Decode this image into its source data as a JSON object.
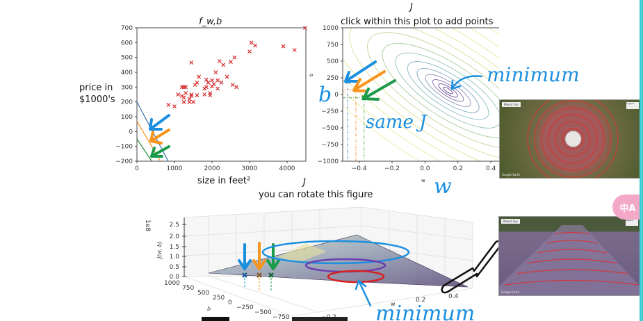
{
  "scatter": {
    "title": "f_w,b",
    "title_main": "f",
    "title_sub": "w, b",
    "ylabel_line1": "price in",
    "ylabel_line2": "$1000's",
    "xlabel": "size in feet²",
    "yticks": [
      "700",
      "600",
      "500",
      "400",
      "300",
      "200",
      "100",
      "0",
      "−100",
      "−200"
    ],
    "xticks": [
      "0",
      "1000",
      "2000",
      "3000",
      "4000"
    ]
  },
  "contour": {
    "top_label": "J",
    "title": "click within this plot to add points",
    "xlabel": "w",
    "ylabel": "b",
    "yticks": [
      "1000",
      "750",
      "500",
      "250",
      "0",
      "−250",
      "−500",
      "−750",
      "−1000"
    ],
    "xticks": [
      "−0.4",
      "−0.2",
      "0.0",
      "0.2",
      "0.4"
    ]
  },
  "surface": {
    "top_label": "J",
    "title": "you can rotate this figure",
    "zscale": "1e8",
    "zlabel": "J(w, b)",
    "zticks": [
      "2.5",
      "2.0",
      "1.5",
      "1.0",
      "0.5",
      "0.0"
    ],
    "b_label": "b",
    "bticks": [
      "1000",
      "750",
      "500",
      "250",
      "0",
      "−250",
      "−500",
      "−750"
    ],
    "w_label": "w",
    "wticks": [
      "−0.2",
      "0.2",
      "0.4"
    ]
  },
  "annotations": {
    "minimum_top": "minimum",
    "same_j": "same J",
    "b_hand": "b",
    "w_hand": "w",
    "minimum_bottom": "minimum"
  },
  "photos": {
    "top_caption": "Mount Fuji",
    "bottom_caption": "Mount Fuji",
    "credit": "Google Earth",
    "legend": "Legend"
  },
  "translate_button": "中A",
  "colors": {
    "blue": "#1a8fe0",
    "orange": "#f7941d",
    "green": "#1a9a4a",
    "points": "#d62728"
  },
  "chart_data": [
    {
      "type": "scatter",
      "title": "f_w,b",
      "xlabel": "size in feet²",
      "ylabel": "price in $1000's",
      "xlim": [
        0,
        4500
      ],
      "ylim": [
        -200,
        700
      ],
      "points": [
        [
          840,
          180
        ],
        [
          1000,
          170
        ],
        [
          1100,
          250
        ],
        [
          1200,
          300
        ],
        [
          1200,
          240
        ],
        [
          1250,
          200
        ],
        [
          1250,
          300
        ],
        [
          1300,
          300
        ],
        [
          1300,
          260
        ],
        [
          1250,
          230
        ],
        [
          1400,
          220
        ],
        [
          1400,
          200
        ],
        [
          1450,
          240
        ],
        [
          1450,
          250
        ],
        [
          1500,
          200
        ],
        [
          1450,
          465
        ],
        [
          1550,
          315
        ],
        [
          1600,
          330
        ],
        [
          1600,
          245
        ],
        [
          1650,
          370
        ],
        [
          1800,
          250
        ],
        [
          1800,
          290
        ],
        [
          1850,
          350
        ],
        [
          1850,
          300
        ],
        [
          1900,
          330
        ],
        [
          1950,
          260
        ],
        [
          1950,
          245
        ],
        [
          2000,
          345
        ],
        [
          2000,
          305
        ],
        [
          2050,
          320
        ],
        [
          2100,
          400
        ],
        [
          2150,
          345
        ],
        [
          2150,
          290
        ],
        [
          2200,
          475
        ],
        [
          2250,
          330
        ],
        [
          2300,
          450
        ],
        [
          2400,
          370
        ],
        [
          2500,
          470
        ],
        [
          2550,
          315
        ],
        [
          2600,
          500
        ],
        [
          2650,
          300
        ],
        [
          3000,
          540
        ],
        [
          3050,
          600
        ],
        [
          3150,
          580
        ],
        [
          3900,
          575
        ],
        [
          4200,
          550
        ],
        [
          4480,
          700
        ]
      ],
      "lines": [
        {
          "name": "blue",
          "b": 200,
          "w": -0.48
        },
        {
          "name": "orange",
          "b": 70,
          "w": -0.43
        },
        {
          "name": "green",
          "b": -50,
          "w": -0.38
        }
      ]
    },
    {
      "type": "contour",
      "title": "click within this plot to add points",
      "xlabel": "w",
      "ylabel": "b",
      "xlim": [
        -0.5,
        0.45
      ],
      "ylim": [
        -1000,
        1000
      ],
      "minimum": [
        0.14,
        60
      ],
      "marked_points": [
        {
          "name": "blue",
          "w": -0.47,
          "b": 200
        },
        {
          "name": "orange",
          "w": -0.42,
          "b": 70
        },
        {
          "name": "green",
          "w": -0.37,
          "b": -50
        }
      ]
    }
  ]
}
